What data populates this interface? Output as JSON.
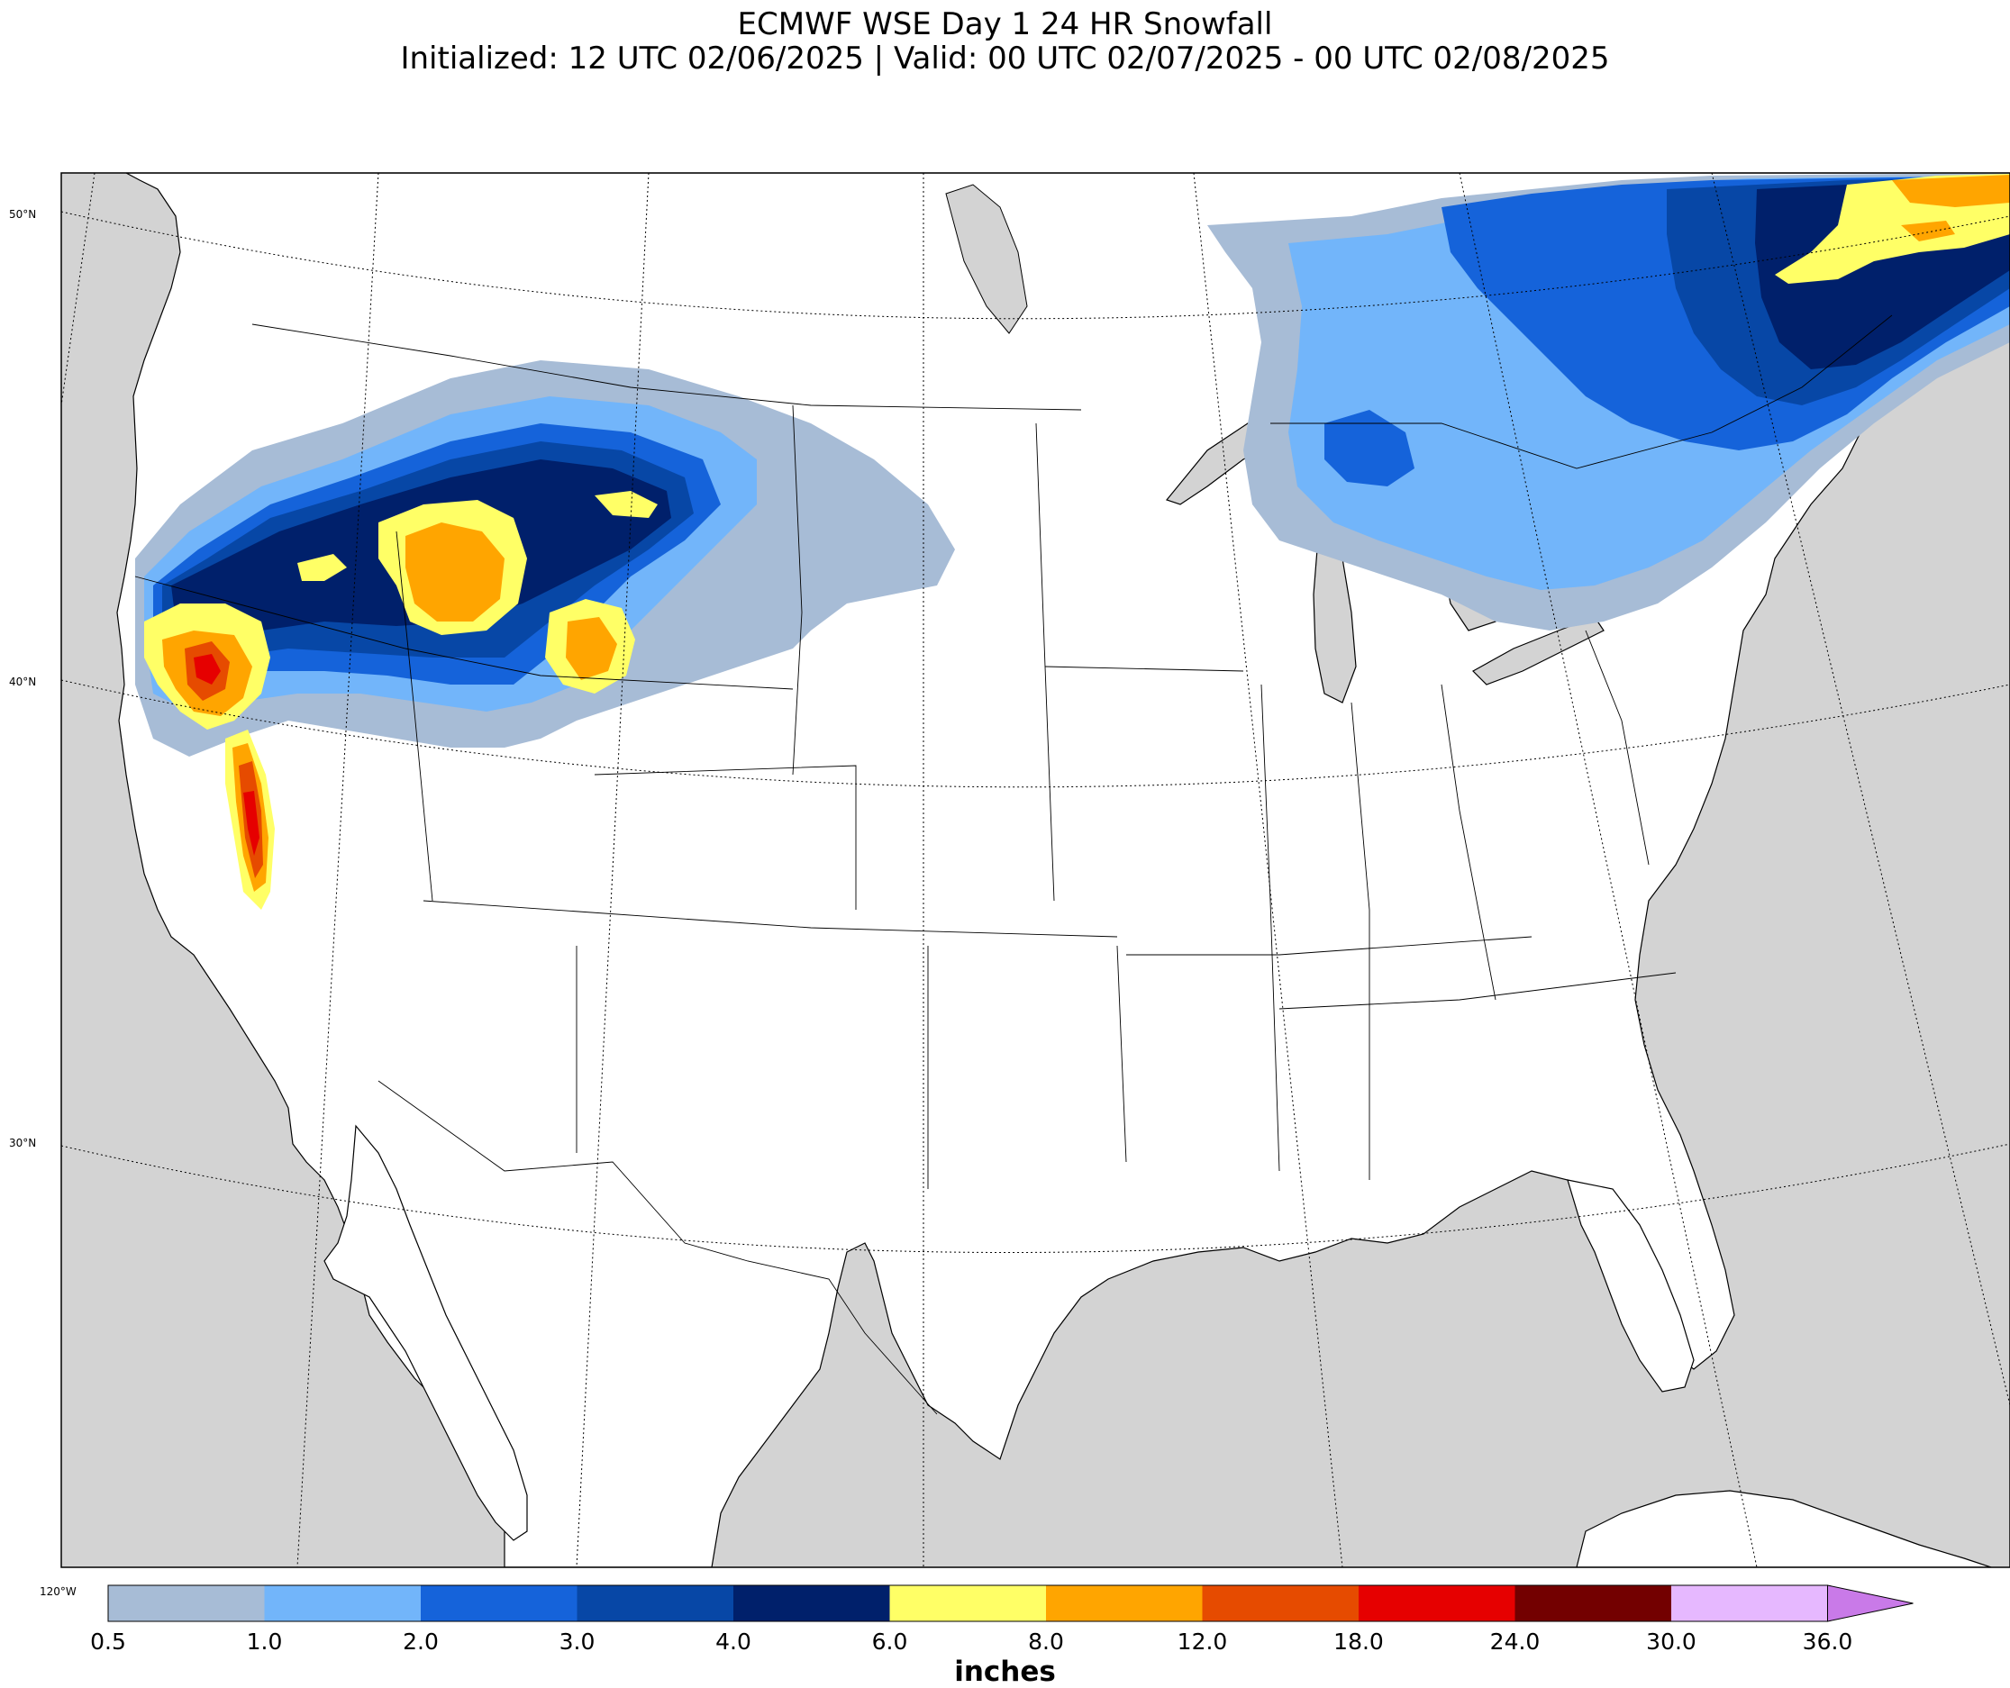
{
  "title": {
    "line1": "ECMWF WSE Day 1 24 HR Snowfall",
    "line2": "Initialized: 12 UTC 02/06/2025 | Valid: 00 UTC 02/07/2025 - 00 UTC 02/08/2025"
  },
  "map": {
    "lat_labels": [
      "50°N",
      "40°N",
      "30°N"
    ],
    "lon_label": "120°W",
    "colors": {
      "ocean": "#d3d3d3",
      "land": "#ffffff"
    }
  },
  "colorbar": {
    "label": "inches",
    "ticks": [
      "0.5",
      "1.0",
      "2.0",
      "3.0",
      "4.0",
      "6.0",
      "8.0",
      "12.0",
      "18.0",
      "24.0",
      "30.0",
      "36.0"
    ],
    "colors": [
      "#a7bcd6",
      "#72b5fa",
      "#1563da",
      "#0747a6",
      "#00206b",
      "#ffff66",
      "#ffa500",
      "#e64b00",
      "#e60000",
      "#730000",
      "#e6b8ff",
      "#c97ae8"
    ],
    "extend": "max"
  }
}
